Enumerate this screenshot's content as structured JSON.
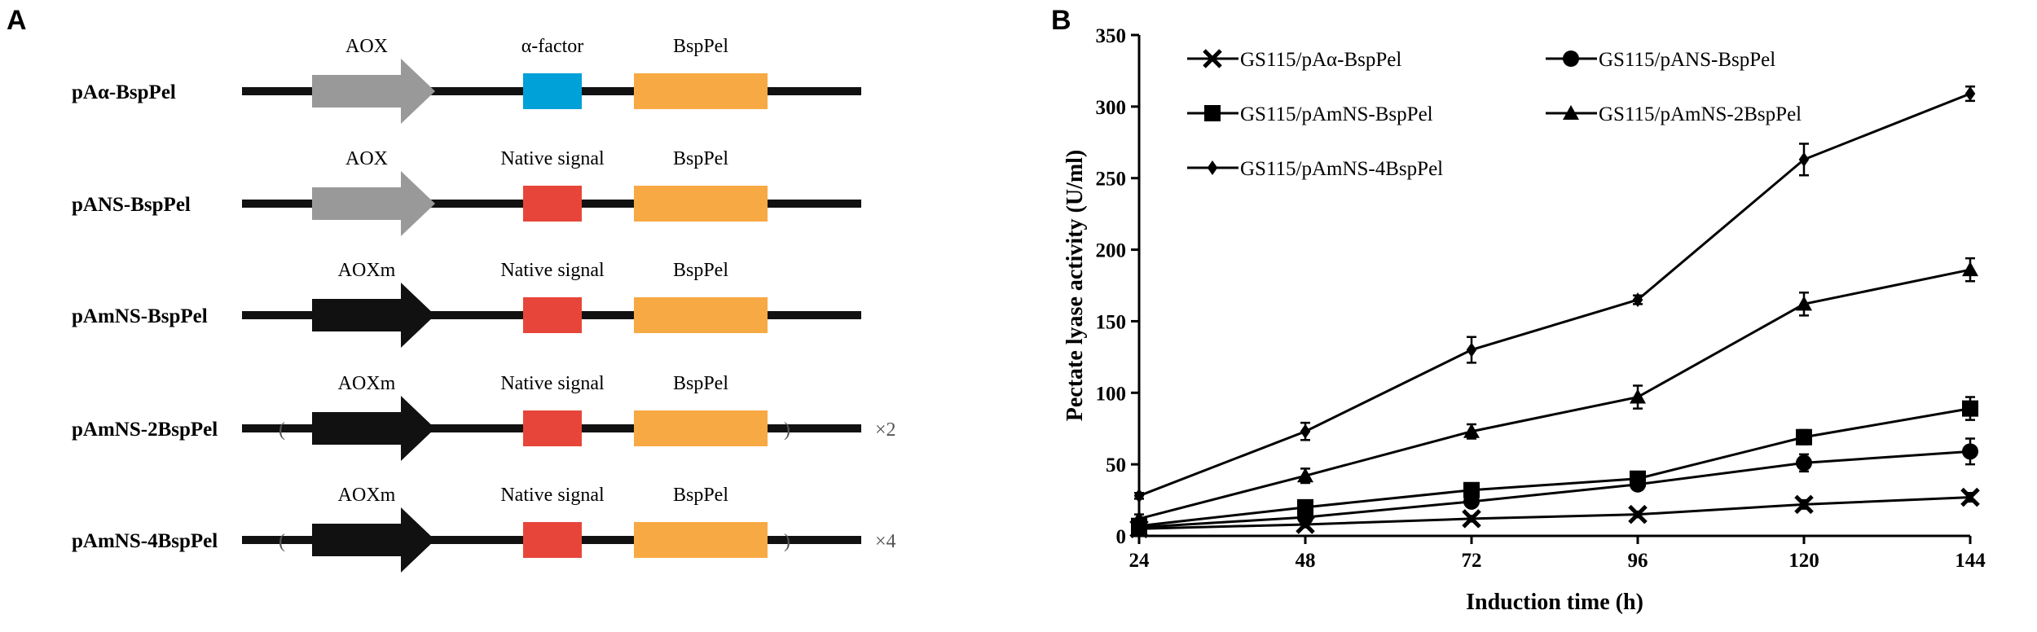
{
  "panel_a": {
    "letter": "A",
    "constructs": [
      {
        "name": "pAα-BspPel",
        "promoter": "AOX",
        "promoter_color": "#999999",
        "signal": "α-factor",
        "signal_color": "#00a0d8",
        "gene": "BspPel",
        "gene_color": "#f7a943",
        "copies": ""
      },
      {
        "name": "pANS-BspPel",
        "promoter": "AOX",
        "promoter_color": "#999999",
        "signal": "Native signal",
        "signal_color": "#e8453a",
        "gene": "BspPel",
        "gene_color": "#f7a943",
        "copies": ""
      },
      {
        "name": "pAmNS-BspPel",
        "promoter": "AOXm",
        "promoter_color": "#111111",
        "signal": "Native signal",
        "signal_color": "#e8453a",
        "gene": "BspPel",
        "gene_color": "#f7a943",
        "copies": ""
      },
      {
        "name": "pAmNS-2BspPel",
        "promoter": "AOXm",
        "promoter_color": "#111111",
        "signal": "Native signal",
        "signal_color": "#e8453a",
        "gene": "BspPel",
        "gene_color": "#f7a943",
        "copies": "×2"
      },
      {
        "name": "pAmNS-4BspPel",
        "promoter": "AOXm",
        "promoter_color": "#111111",
        "signal": "Native signal",
        "signal_color": "#e8453a",
        "gene": "BspPel",
        "gene_color": "#f7a943",
        "copies": "×4"
      }
    ]
  },
  "panel_b": {
    "letter": "B"
  },
  "chart_data": {
    "type": "line",
    "title": "",
    "xlabel": "Induction time (h)",
    "ylabel": "Pectate lyase activity (U/ml)",
    "x": [
      24,
      48,
      72,
      96,
      120,
      144
    ],
    "xticks": [
      "24",
      "48",
      "72",
      "96",
      "120",
      "144"
    ],
    "yticks": [
      "0",
      "50",
      "100",
      "150",
      "200",
      "250",
      "300",
      "350"
    ],
    "ylim": [
      0,
      350
    ],
    "grid": false,
    "legend_position": "top-left",
    "series": [
      {
        "name": "GS115/pAα-BspPel",
        "marker": "x",
        "values": [
          5,
          8,
          12,
          15,
          22,
          27
        ],
        "errors": [
          2,
          2,
          2,
          2,
          3,
          3
        ]
      },
      {
        "name": "GS115/pANS-BspPel",
        "marker": "circle",
        "values": [
          6,
          13,
          24,
          36,
          51,
          59
        ],
        "errors": [
          2,
          2,
          3,
          3,
          6,
          9
        ]
      },
      {
        "name": "GS115/pAmNS-BspPel",
        "marker": "square",
        "values": [
          7,
          20,
          32,
          40,
          69,
          89
        ],
        "errors": [
          2,
          3,
          3,
          3,
          5,
          8
        ]
      },
      {
        "name": "GS115/pAmNS-2BspPel",
        "marker": "triangle",
        "values": [
          12,
          42,
          73,
          97,
          162,
          186
        ],
        "errors": [
          3,
          5,
          5,
          8,
          8,
          8
        ]
      },
      {
        "name": "GS115/pAmNS-4BspPel",
        "marker": "diamond",
        "values": [
          28,
          73,
          130,
          165,
          263,
          309
        ],
        "errors": [
          2,
          6,
          9,
          3,
          11,
          5
        ]
      }
    ]
  }
}
